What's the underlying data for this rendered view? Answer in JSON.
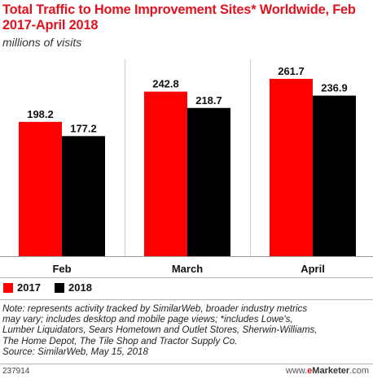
{
  "header": {
    "title": "Total Traffic to Home Improvement Sites* Worldwide, Feb 2017-April 2018",
    "subtitle": "millions of visits"
  },
  "chart_data": {
    "type": "bar",
    "title": "Total Traffic to Home Improvement Sites* Worldwide, Feb 2017-April 2018",
    "subtitle": "millions of visits",
    "categories": [
      "Feb",
      "March",
      "April"
    ],
    "series": [
      {
        "name": "2017",
        "values": [
          198.2,
          242.8,
          261.7
        ],
        "color": "#ff0000"
      },
      {
        "name": "2018",
        "values": [
          177.2,
          218.7,
          236.9
        ],
        "color": "#000000"
      }
    ],
    "value_labels": [
      [
        "198.2",
        "242.8",
        "261.7"
      ],
      [
        "177.2",
        "218.7",
        "236.9"
      ]
    ],
    "ylim": [
      0,
      300
    ],
    "grid": false,
    "legend": "bottom-left",
    "xlabel": "",
    "ylabel": ""
  },
  "legend": {
    "items": [
      {
        "label": "2017",
        "color": "#ff0000"
      },
      {
        "label": "2018",
        "color": "#000000"
      }
    ]
  },
  "note": {
    "line1": "Note: represents activity tracked by SimilarWeb, broader industry metrics",
    "line2": "may vary; includes desktop and mobile page views; *includes Lowe's,",
    "line3": "Lumber Liquidators, Sears Hometown and Outlet Stores, Sherwin-Williams,",
    "line4": "The Home Depot, The Tile Shop and Tractor Supply Co.",
    "source": "Source: SimilarWeb, May 15, 2018"
  },
  "footer": {
    "chart_id": "237914",
    "site_prefix": "www.",
    "site_e": "e",
    "site_brand": "Marketer",
    "site_suffix": ".com"
  }
}
